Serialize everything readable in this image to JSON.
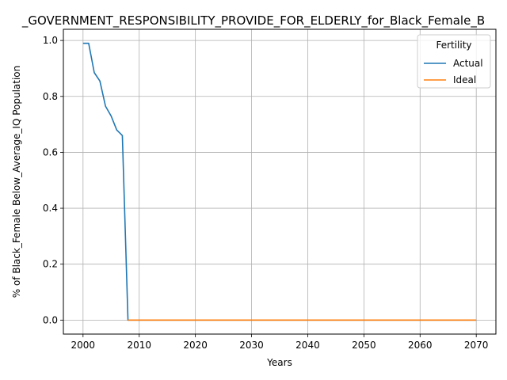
{
  "chart_data": {
    "type": "line",
    "title": "_GOVERNMENT_RESPONSIBILITY_PROVIDE_FOR_ELDERLY_for_Black_Female_B",
    "xlabel": "Years",
    "ylabel": "% of Black_Female Below_Average_IQ Population",
    "xlim": [
      1996.5,
      2073.5
    ],
    "ylim": [
      -0.05,
      1.04
    ],
    "xticks": [
      2000,
      2010,
      2020,
      2030,
      2040,
      2050,
      2060,
      2070
    ],
    "xtick_labels": [
      "2000",
      "2010",
      "2020",
      "2030",
      "2040",
      "2050",
      "2060",
      "2070"
    ],
    "yticks": [
      0.0,
      0.2,
      0.4,
      0.6,
      0.8,
      1.0
    ],
    "ytick_labels": [
      "0.0",
      "0.2",
      "0.4",
      "0.6",
      "0.8",
      "1.0"
    ],
    "grid": true,
    "legend": {
      "title": "Fertility",
      "placement": "top-right"
    },
    "series": [
      {
        "name": "Actual",
        "color": "#1f77b4",
        "x": [
          2000,
          2001,
          2002,
          2003,
          2004,
          2005,
          2006,
          2007,
          2008,
          2009,
          2010,
          2020,
          2030,
          2040,
          2050,
          2060,
          2070
        ],
        "y": [
          0.99,
          0.99,
          0.885,
          0.855,
          0.765,
          0.73,
          0.68,
          0.66,
          0.0,
          0.0,
          0.0,
          0.0,
          0.0,
          0.0,
          0.0,
          0.0,
          0.0
        ]
      },
      {
        "name": "Ideal",
        "color": "#ff7f0e",
        "x": [
          2008,
          2010,
          2020,
          2030,
          2040,
          2050,
          2060,
          2070
        ],
        "y": [
          0.0,
          0.0,
          0.0,
          0.0,
          0.0,
          0.0,
          0.0,
          0.0
        ]
      }
    ]
  }
}
